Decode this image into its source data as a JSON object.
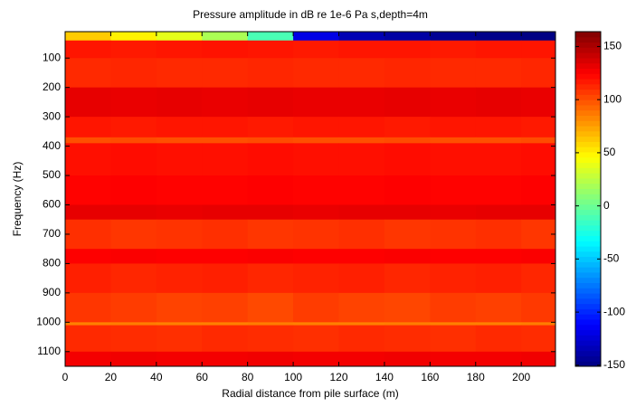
{
  "chart_data": {
    "type": "heatmap",
    "title": "Pressure amplitude in dB re 1e-6 Pa s,depth=4m",
    "x_label": "Radial distance from pile surface (m)",
    "y_label": "Frequency (Hz)",
    "x": [
      0,
      20,
      40,
      60,
      80,
      100,
      120,
      140,
      160,
      180,
      200
    ],
    "y": [
      10,
      40,
      100,
      200,
      300,
      370,
      390,
      500,
      600,
      650,
      750,
      800,
      900,
      1000,
      1010,
      1100
    ],
    "z": [
      [
        62,
        50,
        38,
        20,
        -10,
        -120,
        -135,
        -140,
        -145,
        -148,
        -150
      ],
      [
        118,
        117,
        118,
        119,
        118,
        117,
        118,
        118,
        117,
        118,
        118
      ],
      [
        112,
        113,
        112,
        112,
        113,
        112,
        112,
        113,
        112,
        112,
        113
      ],
      [
        132,
        131,
        132,
        131,
        132,
        131,
        131,
        132,
        131,
        132,
        131
      ],
      [
        118,
        117,
        118,
        118,
        117,
        118,
        118,
        117,
        118,
        118,
        117
      ],
      [
        100,
        101,
        100,
        100,
        101,
        100,
        100,
        101,
        100,
        100,
        101
      ],
      [
        120,
        121,
        120,
        120,
        121,
        120,
        120,
        121,
        120,
        120,
        121
      ],
      [
        124,
        125,
        124,
        124,
        125,
        124,
        124,
        125,
        124,
        124,
        125
      ],
      [
        132,
        132,
        131,
        132,
        132,
        131,
        132,
        132,
        131,
        132,
        132
      ],
      [
        110,
        108,
        109,
        110,
        108,
        109,
        110,
        108,
        109,
        110,
        108
      ],
      [
        125,
        126,
        125,
        125,
        126,
        125,
        125,
        126,
        125,
        125,
        126
      ],
      [
        115,
        113,
        114,
        115,
        113,
        114,
        115,
        113,
        114,
        115,
        113
      ],
      [
        108,
        106,
        104,
        105,
        102,
        106,
        104,
        103,
        106,
        105,
        107
      ],
      [
        85,
        86,
        85,
        85,
        86,
        85,
        85,
        86,
        85,
        85,
        86
      ],
      [
        112,
        111,
        110,
        112,
        111,
        110,
        112,
        111,
        110,
        112,
        111
      ],
      [
        128,
        129,
        128,
        128,
        129,
        128,
        128,
        129,
        128,
        128,
        129
      ]
    ],
    "xlim": [
      0,
      215
    ],
    "ylim": [
      10,
      1150
    ],
    "y_inverted": true,
    "xticks": [
      0,
      20,
      40,
      60,
      80,
      100,
      120,
      140,
      160,
      180,
      200
    ],
    "yticks": [
      100,
      200,
      300,
      400,
      500,
      600,
      700,
      800,
      900,
      1000,
      1100
    ],
    "clim": [
      -151,
      164
    ],
    "cticks": [
      -150,
      -100,
      -50,
      0,
      50,
      100,
      150
    ],
    "colormap": "jet"
  }
}
